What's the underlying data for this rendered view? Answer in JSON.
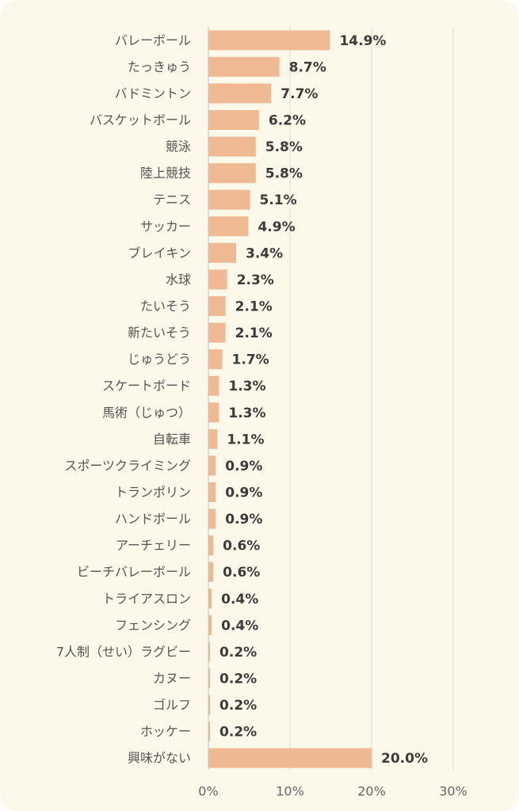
{
  "chart_data": {
    "type": "bar",
    "orientation": "horizontal",
    "categories": [
      "バレーボール",
      "たっきゅう",
      "バドミントン",
      "バスケットボール",
      "競泳",
      "陸上競技",
      "テニス",
      "サッカー",
      "ブレイキン",
      "水球",
      "たいそう",
      "新たいそう",
      "じゅうどう",
      "スケートボード",
      "馬術（じゅつ）",
      "自転車",
      "スポーツクライミング",
      "トランポリン",
      "ハンドボール",
      "アーチェリー",
      "ビーチバレーボール",
      "トライアスロン",
      "フェンシング",
      "7人制（せい）ラグビー",
      "カヌー",
      "ゴルフ",
      "ホッケー",
      "興味がない"
    ],
    "values": [
      14.9,
      8.7,
      7.7,
      6.2,
      5.8,
      5.8,
      5.1,
      4.9,
      3.4,
      2.3,
      2.1,
      2.1,
      1.7,
      1.3,
      1.3,
      1.1,
      0.9,
      0.9,
      0.9,
      0.6,
      0.6,
      0.4,
      0.4,
      0.2,
      0.2,
      0.2,
      0.2,
      20.0
    ],
    "value_labels": [
      "14.9%",
      "8.7%",
      "7.7%",
      "6.2%",
      "5.8%",
      "5.8%",
      "5.1%",
      "4.9%",
      "3.4%",
      "2.3%",
      "2.1%",
      "2.1%",
      "1.7%",
      "1.3%",
      "1.3%",
      "1.1%",
      "0.9%",
      "0.9%",
      "0.9%",
      "0.6%",
      "0.6%",
      "0.4%",
      "0.4%",
      "0.2%",
      "0.2%",
      "0.2%",
      "0.2%",
      "20.0%"
    ],
    "xlim": [
      0,
      30
    ],
    "xticks": [
      0,
      10,
      20,
      30
    ],
    "xtick_labels": [
      "0%",
      "10%",
      "20%",
      "30%"
    ],
    "grid": "vertical",
    "legend": "none",
    "bar_color": "#efb994",
    "grid_color": "#d9d9d9",
    "axis_color": "#bfbfbf",
    "background_color": "#fcf9ea"
  }
}
